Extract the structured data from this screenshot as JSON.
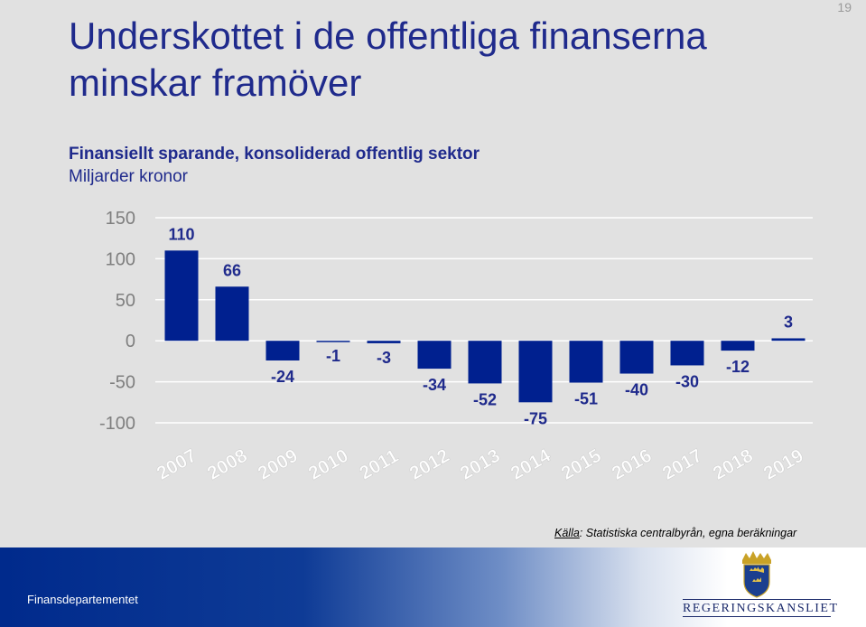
{
  "page_number": "19",
  "title": "Underskottet i de offentliga finanserna minskar framöver",
  "subtitle": "Finansiellt sparande, konsoliderad offentlig sektor",
  "unit": "Miljarder kronor",
  "source": {
    "label": "Källa",
    "text": ": Statistiska centralbyrån, egna beräkningar"
  },
  "footer": {
    "department": "Finansdepartementet",
    "logo_text": "REGERINGSKANSLIET"
  },
  "colors": {
    "bar": "#00208f",
    "title": "#1f2a8c",
    "axis_text": "#7f7f7f",
    "data_label": "#1f2a8c"
  },
  "icons": {
    "logo": "crowned-shield-three-crowns-icon"
  },
  "chart_data": {
    "type": "bar",
    "categories": [
      "2007",
      "2008",
      "2009",
      "2010",
      "2011",
      "2012",
      "2013",
      "2014",
      "2015",
      "2016",
      "2017",
      "2018",
      "2019"
    ],
    "values": [
      110,
      66,
      -24,
      -1,
      -3,
      -34,
      -52,
      -75,
      -51,
      -40,
      -30,
      -12,
      3
    ],
    "data_labels": [
      "110",
      "66",
      "-24",
      "-1",
      "-3",
      "-34",
      "-52",
      "-75",
      "-51",
      "-40",
      "-30",
      "-12",
      "3"
    ],
    "yticks": [
      150,
      100,
      50,
      0,
      -50,
      -100
    ],
    "ylim": [
      -100,
      150
    ],
    "title": "Finansiellt sparande, konsoliderad offentlig sektor",
    "ylabel": "Miljarder kronor",
    "xlabel": "",
    "grid": true
  }
}
